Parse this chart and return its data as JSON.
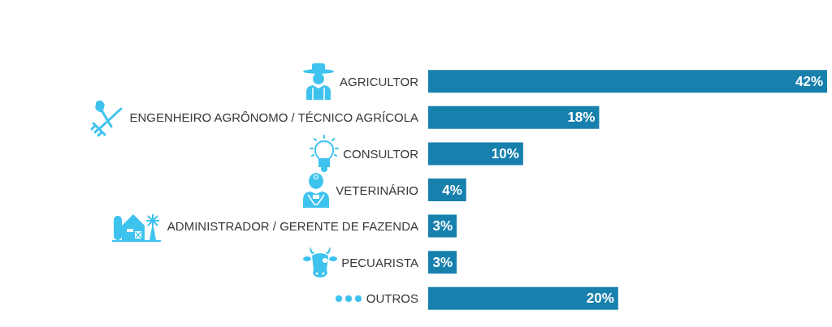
{
  "chart_data": {
    "type": "bar",
    "orientation": "horizontal",
    "categories": [
      "AGRICULTOR",
      "ENGENHEIRO AGRÔNOMO / TÉCNICO AGRÍCOLA",
      "CONSULTOR",
      "VETERINÁRIO",
      "ADMINISTRADOR / GERENTE DE FAZENDA",
      "PECUARISTA",
      "OUTROS"
    ],
    "values": [
      42,
      18,
      10,
      4,
      3,
      3,
      20
    ],
    "value_labels": [
      "42%",
      "18%",
      "10%",
      "4%",
      "3%",
      "3%",
      "20%"
    ],
    "color": "#1780ad",
    "xlim": [
      0,
      42
    ],
    "tick_labels": "y"
  }
}
